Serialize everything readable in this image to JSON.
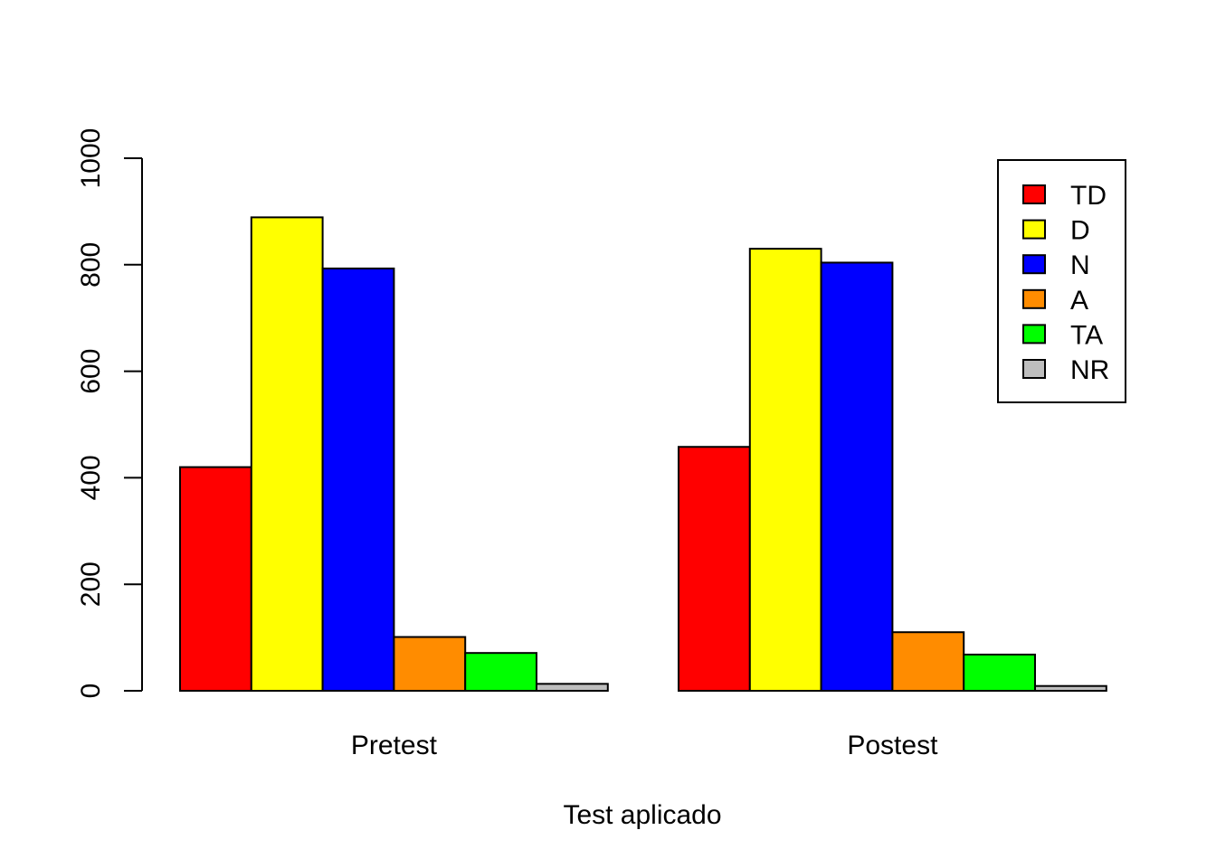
{
  "chart_data": {
    "type": "bar",
    "title": "",
    "xlabel": "Test aplicado",
    "ylabel": "",
    "ylim": [
      0,
      1000
    ],
    "yticks": [
      0,
      200,
      400,
      600,
      800,
      1000
    ],
    "grid": false,
    "legend_position": "top-right",
    "categories": [
      "Pretest",
      "Postest"
    ],
    "series": [
      {
        "name": "TD",
        "color": "#ff0000",
        "values": [
          420,
          458
        ]
      },
      {
        "name": "D",
        "color": "#ffff00",
        "values": [
          889,
          830
        ]
      },
      {
        "name": "N",
        "color": "#0000ff",
        "values": [
          793,
          804
        ]
      },
      {
        "name": "A",
        "color": "#ff8c00",
        "values": [
          101,
          110
        ]
      },
      {
        "name": "TA",
        "color": "#00ff00",
        "values": [
          71,
          68
        ]
      },
      {
        "name": "NR",
        "color": "#bebebe",
        "values": [
          13,
          9
        ]
      }
    ]
  }
}
